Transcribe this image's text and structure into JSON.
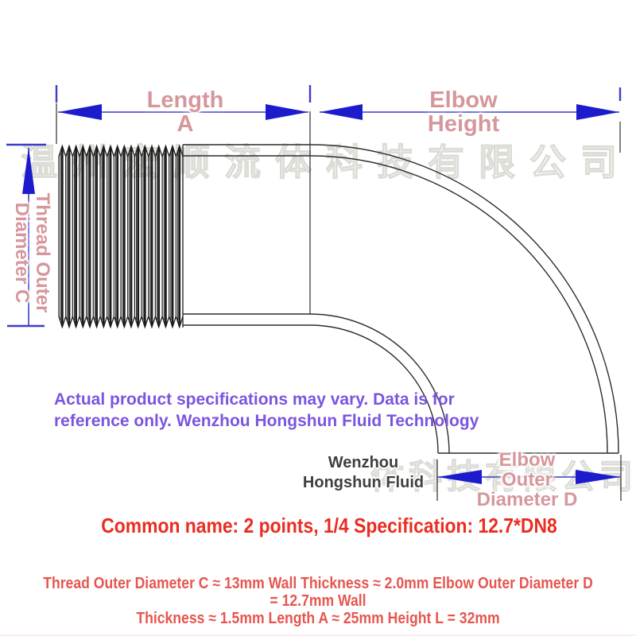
{
  "watermark": {
    "row1": "温州宏顺流体科技有限公司",
    "row2": "体科技有限公司"
  },
  "dimensions": {
    "length_a": {
      "line1": "Length",
      "line2": "A"
    },
    "elbow_height": {
      "line1": "Elbow",
      "line2": "Height"
    },
    "thread_c": {
      "line1": "Thread Outer",
      "line2": "Diameter C"
    },
    "elbow_d": {
      "line1": "Elbow",
      "line2": "Outer",
      "line3": "Diameter D"
    }
  },
  "disclaimer": {
    "line1": "Actual product specifications may vary. Data is for",
    "line2": "reference only. Wenzhou Hongshun Fluid Technology"
  },
  "brand": {
    "line1": "Wenzhou",
    "line2": "Hongshun Fluid"
  },
  "title": "Common name: 2 points, 1/4 Specification: 12.7*DN8",
  "specs": {
    "line1": "Thread Outer Diameter C ≈ 13mm Wall Thickness ≈ 2.0mm Elbow Outer Diameter D = 12.7mm Wall",
    "line2": "Thickness ≈ 1.5mm Length A ≈ 25mm Height L = 32mm"
  },
  "spec_values": {
    "thread_outer_diameter_c_mm": "≈ 13",
    "thread_wall_thickness_mm": "≈ 2.0",
    "elbow_outer_diameter_d_mm": "= 12.7",
    "elbow_wall_thickness_mm": "≈ 1.5",
    "length_a_mm": "≈ 25",
    "height_l_mm": "= 32",
    "common_name": "2 points, 1/4",
    "specification": "12.7*DN8"
  },
  "colors": {
    "label_pink": "#d6979c",
    "arrow_blue": "#1c1ccd",
    "dim_line_blue": "#3b3bc8",
    "disclaimer_purple": "#7a55e0",
    "title_red": "#ea2c21",
    "specs_red": "#e6564e",
    "drawing_line": "#2d2d2d",
    "watermark_gray": "#dcdcd7"
  }
}
